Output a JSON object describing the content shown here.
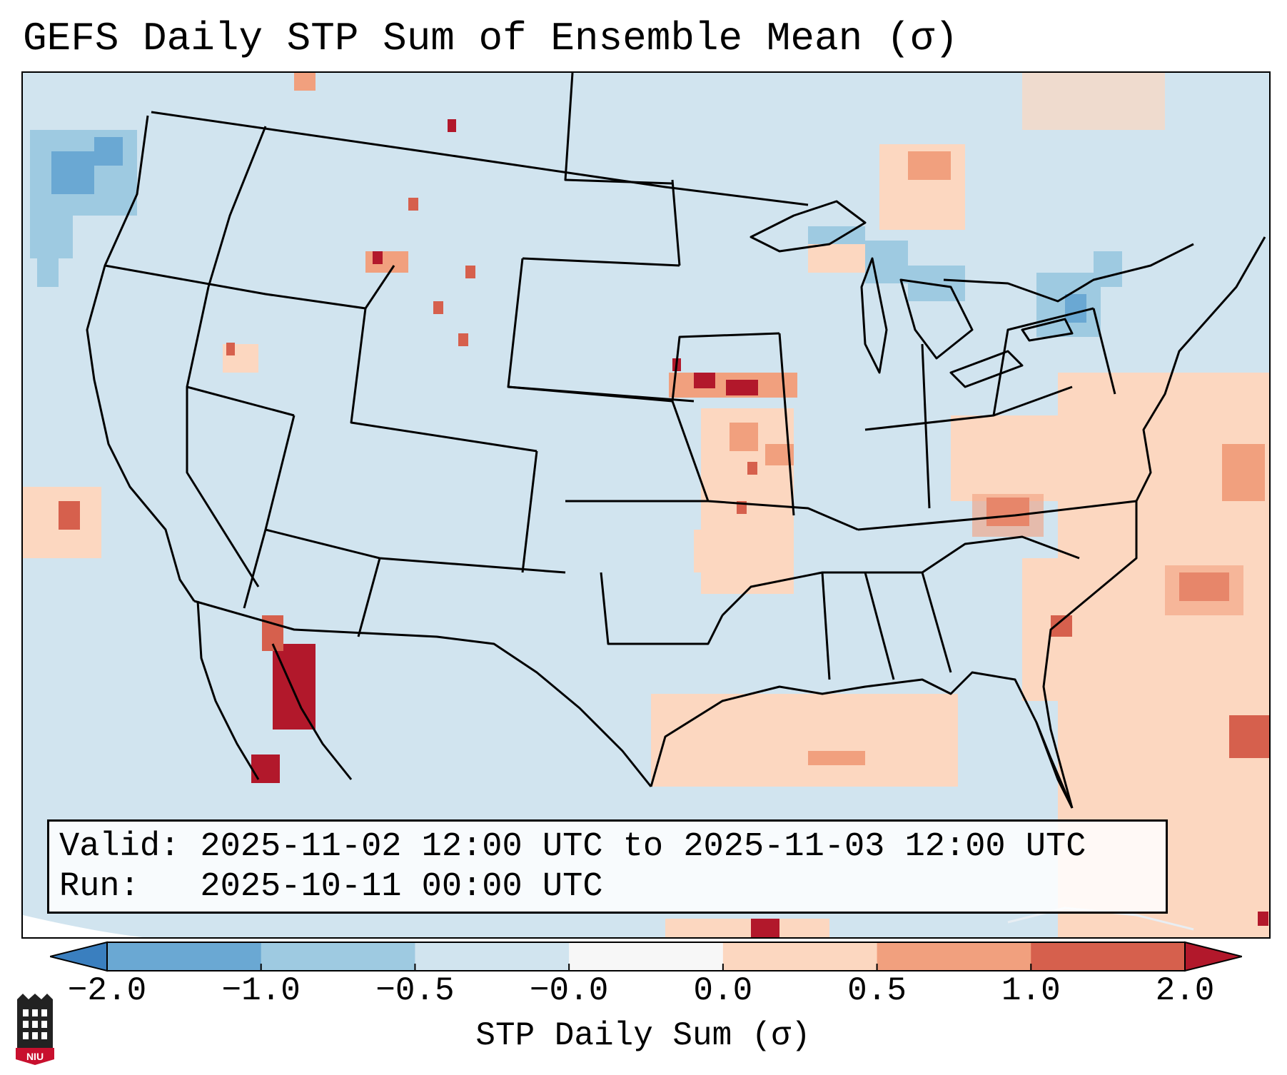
{
  "title": "GEFS Daily STP Sum of Ensemble Mean (σ)",
  "info": {
    "valid_line": "Valid: 2025-11-02 12:00 UTC to 2025-11-03 12:00 UTC",
    "run_line": "Run:   2025-10-11 00:00 UTC"
  },
  "colorbar": {
    "label": "STP Daily Sum (σ)",
    "ticks": [
      "−2.0",
      "−1.0",
      "−0.5",
      "−0.0",
      "0.0",
      "0.5",
      "1.0",
      "2.0"
    ],
    "colors": [
      "#3a7fbf",
      "#6aa8d3",
      "#9ecae1",
      "#d1e4ef",
      "#f7f7f7",
      "#fcd7c0",
      "#f1a07e",
      "#d6604d",
      "#b2182b"
    ]
  },
  "map": {
    "background_color": "#d1e4ef",
    "colors": {
      "neg_strong": "#6aa8d3",
      "neg_weak": "#9ecae1",
      "pos_weak": "#fcd7c0",
      "pos_mid": "#f1a07e",
      "pos_strong": "#d6604d",
      "pos_max": "#b2182b"
    }
  },
  "logo": {
    "text": "NIU",
    "color": "#c8102e"
  }
}
